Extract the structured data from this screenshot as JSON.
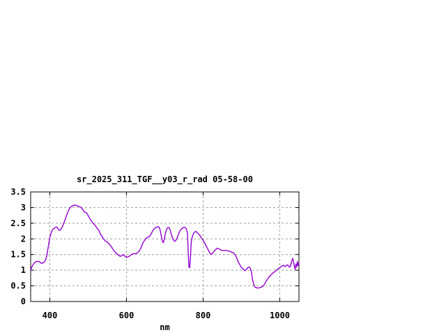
{
  "chart_data": {
    "type": "line",
    "title": "sr_2025_311_TGF__y03_r_rad 05-58-00",
    "xlabel": "nm",
    "ylabel": "",
    "xlim": [
      350,
      1050
    ],
    "ylim": [
      0,
      3.5
    ],
    "grid": true,
    "legend": "none",
    "x_ticks": [
      400,
      600,
      800,
      1000
    ],
    "x_tick_labels": [
      "400",
      "600",
      "800",
      "1000"
    ],
    "y_ticks": [
      0,
      0.5,
      1,
      1.5,
      2,
      2.5,
      3,
      3.5
    ],
    "y_tick_labels": [
      "0",
      "0.5",
      "1",
      "1.5",
      "2",
      "2.5",
      "3",
      "3.5"
    ],
    "line_color": "#9400d3",
    "grid_color": "#9e9e9e",
    "axis_color": "#000000",
    "series": [
      {
        "x": [
          350,
          353,
          356,
          360,
          365,
          370,
          374,
          378,
          382,
          386,
          390,
          393,
          396,
          400,
          403,
          406,
          410,
          414,
          418,
          421,
          424,
          427,
          430,
          433,
          437,
          441,
          445,
          449,
          453,
          457,
          461,
          465,
          469,
          473,
          477,
          481,
          484,
          487,
          490,
          494,
          497,
          500,
          504,
          508,
          512,
          516,
          520,
          524,
          528,
          532,
          536,
          540,
          545,
          550,
          555,
          560,
          565,
          570,
          575,
          580,
          584,
          588,
          592,
          596,
          600,
          604,
          608,
          612,
          616,
          620,
          625,
          630,
          634,
          638,
          642,
          646,
          650,
          655,
          660,
          664,
          668,
          672,
          676,
          680,
          684,
          687,
          690,
          693,
          696,
          699,
          702,
          705,
          708,
          711,
          714,
          717,
          720,
          723,
          726,
          729,
          732,
          735,
          738,
          741,
          744,
          748,
          752,
          756,
          759,
          761,
          763,
          765,
          767,
          769,
          772,
          775,
          778,
          781,
          784,
          788,
          792,
          796,
          800,
          804,
          808,
          812,
          816,
          820,
          824,
          828,
          832,
          836,
          840,
          844,
          848,
          852,
          856,
          860,
          864,
          868,
          872,
          876,
          880,
          884,
          888,
          892,
          896,
          900,
          905,
          909,
          913,
          917,
          920,
          923,
          926,
          929,
          932,
          935,
          939,
          943,
          947,
          951,
          955,
          959,
          963,
          967,
          971,
          975,
          979,
          983,
          987,
          991,
          995,
          999,
          1003,
          1007,
          1010,
          1013,
          1016,
          1019,
          1022,
          1025,
          1028,
          1031,
          1034,
          1037,
          1040,
          1042,
          1044,
          1046,
          1048,
          1050
        ],
        "y": [
          1.0,
          1.1,
          1.17,
          1.24,
          1.28,
          1.28,
          1.26,
          1.22,
          1.23,
          1.27,
          1.35,
          1.55,
          1.75,
          2.05,
          2.18,
          2.27,
          2.33,
          2.36,
          2.38,
          2.33,
          2.28,
          2.28,
          2.33,
          2.4,
          2.52,
          2.65,
          2.8,
          2.92,
          3.0,
          3.04,
          3.06,
          3.08,
          3.07,
          3.05,
          3.03,
          3.01,
          2.97,
          2.92,
          2.86,
          2.84,
          2.82,
          2.74,
          2.66,
          2.58,
          2.51,
          2.46,
          2.4,
          2.33,
          2.27,
          2.15,
          2.08,
          2.0,
          1.93,
          1.9,
          1.83,
          1.76,
          1.66,
          1.58,
          1.52,
          1.47,
          1.44,
          1.47,
          1.5,
          1.44,
          1.41,
          1.43,
          1.45,
          1.49,
          1.52,
          1.53,
          1.53,
          1.57,
          1.63,
          1.72,
          1.85,
          1.93,
          2.0,
          2.05,
          2.08,
          2.15,
          2.25,
          2.32,
          2.36,
          2.38,
          2.39,
          2.33,
          2.15,
          1.95,
          1.88,
          2.0,
          2.2,
          2.32,
          2.36,
          2.36,
          2.28,
          2.15,
          2.03,
          1.95,
          1.92,
          1.95,
          2.03,
          2.13,
          2.22,
          2.29,
          2.33,
          2.36,
          2.37,
          2.32,
          2.2,
          1.6,
          1.1,
          1.08,
          1.45,
          1.9,
          2.08,
          2.18,
          2.22,
          2.24,
          2.21,
          2.16,
          2.1,
          2.02,
          1.95,
          1.87,
          1.77,
          1.68,
          1.58,
          1.5,
          1.53,
          1.6,
          1.65,
          1.7,
          1.69,
          1.66,
          1.64,
          1.63,
          1.63,
          1.63,
          1.62,
          1.61,
          1.59,
          1.57,
          1.55,
          1.48,
          1.38,
          1.25,
          1.17,
          1.08,
          1.03,
          0.98,
          1.02,
          1.09,
          1.1,
          1.07,
          0.95,
          0.7,
          0.55,
          0.46,
          0.44,
          0.43,
          0.44,
          0.45,
          0.48,
          0.53,
          0.62,
          0.7,
          0.77,
          0.83,
          0.87,
          0.92,
          0.95,
          1.0,
          1.04,
          1.07,
          1.11,
          1.14,
          1.16,
          1.12,
          1.13,
          1.17,
          1.15,
          1.1,
          1.13,
          1.3,
          1.38,
          1.18,
          1.02,
          1.2,
          1.1,
          1.28,
          1.15,
          1.22
        ]
      }
    ]
  }
}
